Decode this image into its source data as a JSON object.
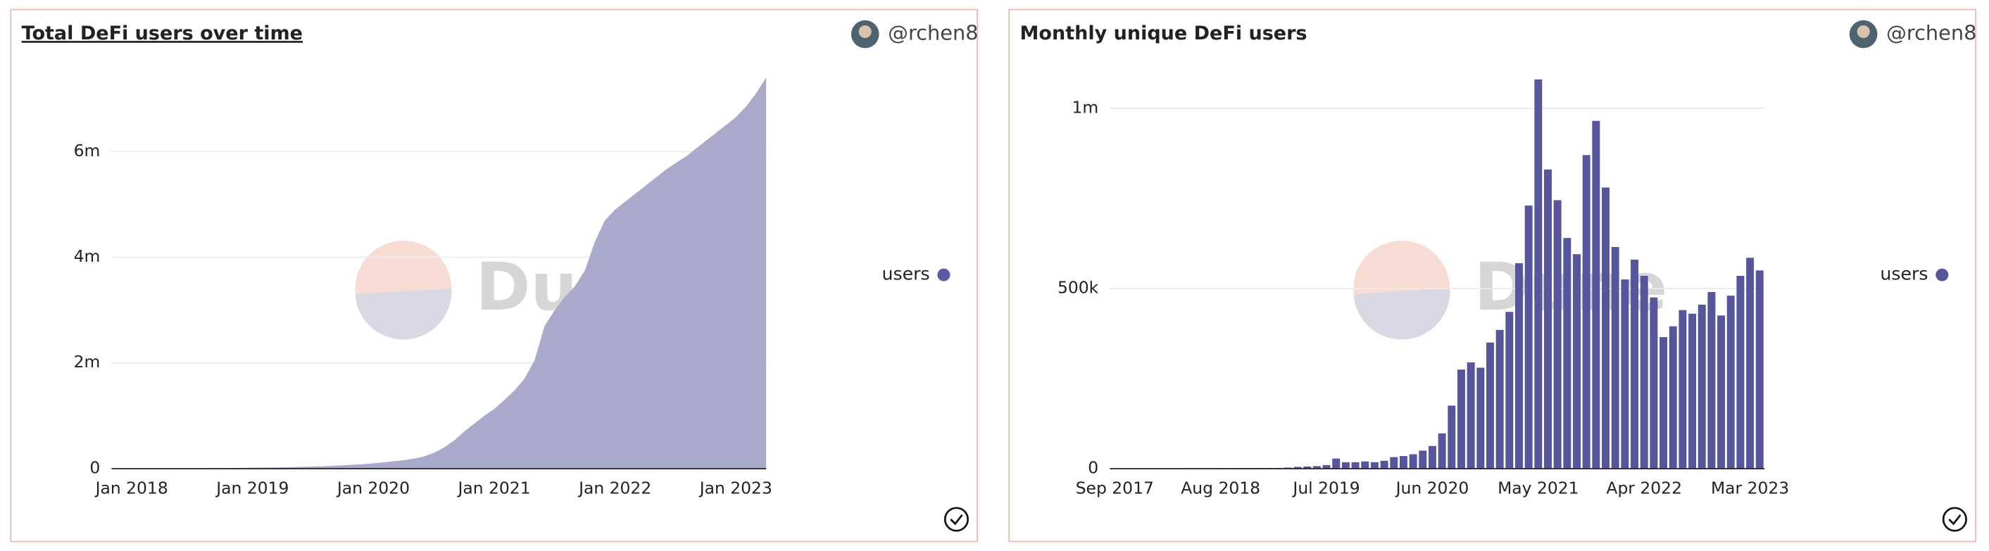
{
  "chart_data": [
    {
      "type": "area",
      "title": "Total DeFi users over time",
      "title_underline": true,
      "author": "@rchen8",
      "watermark": "Dune",
      "categories": [
        null,
        null,
        "Jan 2018",
        null,
        null,
        null,
        null,
        null,
        null,
        null,
        null,
        null,
        null,
        null,
        "Jan 2019",
        null,
        null,
        null,
        null,
        null,
        null,
        null,
        null,
        null,
        null,
        null,
        "Jan 2020",
        null,
        null,
        null,
        null,
        null,
        null,
        null,
        null,
        null,
        null,
        null,
        "Jan 2021",
        null,
        null,
        null,
        null,
        null,
        null,
        null,
        null,
        null,
        null,
        null,
        "Jan 2022",
        null,
        null,
        null,
        null,
        null,
        null,
        null,
        null,
        null,
        null,
        null,
        "Jan 2023",
        null,
        null,
        null
      ],
      "series": [
        {
          "name": "users",
          "color": "#a9a9cb",
          "legend_color": "#5b5b9f",
          "values": [
            1000,
            2000,
            3000,
            4000,
            5000,
            6000,
            7000,
            8000,
            9000,
            10000,
            11000,
            12000,
            13000,
            15000,
            18000,
            20000,
            22000,
            25000,
            30000,
            35000,
            40000,
            45000,
            55000,
            65000,
            75000,
            85000,
            100000,
            120000,
            140000,
            160000,
            190000,
            230000,
            300000,
            400000,
            530000,
            700000,
            850000,
            1000000,
            1130000,
            1300000,
            1480000,
            1700000,
            2050000,
            2700000,
            3000000,
            3250000,
            3450000,
            3750000,
            4300000,
            4700000,
            4900000,
            5050000,
            5200000,
            5350000,
            5500000,
            5650000,
            5780000,
            5900000,
            6050000,
            6200000,
            6350000,
            6500000,
            6650000,
            6850000,
            7100000,
            7400000
          ]
        }
      ],
      "ylim": [
        0,
        7500000
      ],
      "yticks": [
        0,
        {
          "value": 2000000,
          "label": "2m"
        },
        {
          "value": 4000000,
          "label": "4m"
        },
        {
          "value": 6000000,
          "label": "6m"
        }
      ],
      "grid": true,
      "legend": "right"
    },
    {
      "type": "bar",
      "title": "Monthly unique DeFi users",
      "title_underline": false,
      "author": "@rchen8",
      "watermark": "Dune",
      "categories": [
        "Sep 2017",
        null,
        null,
        null,
        null,
        null,
        null,
        null,
        null,
        null,
        null,
        "Aug 2018",
        null,
        null,
        null,
        null,
        null,
        null,
        null,
        null,
        null,
        null,
        "Jul 2019",
        null,
        null,
        null,
        null,
        null,
        null,
        null,
        null,
        null,
        null,
        "Jun 2020",
        null,
        null,
        null,
        null,
        null,
        null,
        null,
        null,
        null,
        null,
        "May 2021",
        null,
        null,
        null,
        null,
        null,
        null,
        null,
        null,
        null,
        null,
        "Apr 2022",
        null,
        null,
        null,
        null,
        null,
        null,
        null,
        null,
        null,
        null,
        "Mar 2023",
        null
      ],
      "series": [
        {
          "name": "users",
          "color": "#57559b",
          "values": [
            500,
            600,
            700,
            800,
            900,
            1000,
            1100,
            1200,
            1300,
            1400,
            1500,
            1600,
            1700,
            1800,
            1900,
            2000,
            2000,
            2000,
            3000,
            5000,
            6000,
            7000,
            10000,
            28000,
            18000,
            18000,
            20000,
            18000,
            22000,
            32000,
            35000,
            40000,
            50000,
            63000,
            98000,
            175000,
            275000,
            295000,
            280000,
            350000,
            385000,
            435000,
            570000,
            730000,
            1080000,
            830000,
            745000,
            640000,
            595000,
            870000,
            965000,
            780000,
            615000,
            525000,
            580000,
            535000,
            475000,
            365000,
            395000,
            440000,
            430000,
            455000,
            490000,
            425000,
            480000,
            535000,
            585000,
            550000
          ]
        }
      ],
      "ylim": [
        0,
        1100000
      ],
      "yticks": [
        0,
        {
          "value": 500000,
          "label": "500k"
        },
        {
          "value": 1000000,
          "label": "1m"
        }
      ],
      "grid": true,
      "legend": "right"
    }
  ]
}
